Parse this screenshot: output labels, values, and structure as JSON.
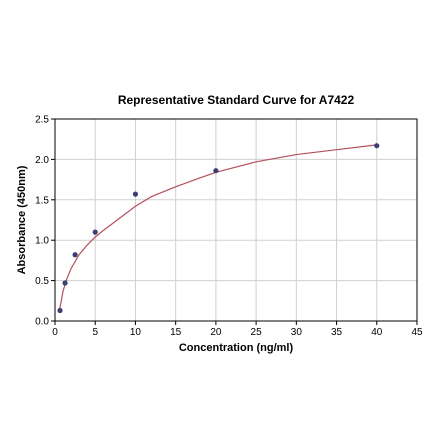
{
  "chart_data": {
    "type": "scatter",
    "title": "Representative Standard Curve for A7422",
    "xlabel": "Concentration (ng/ml)",
    "ylabel": "Absorbance (450nm)",
    "xlim": [
      0,
      45
    ],
    "ylim": [
      0,
      2.5
    ],
    "xticks": [
      0,
      5,
      10,
      15,
      20,
      25,
      30,
      35,
      40,
      45
    ],
    "yticks": [
      0.0,
      0.5,
      1.0,
      1.5,
      2.0,
      2.5
    ],
    "xtick_labels": [
      "0",
      "5",
      "10",
      "15",
      "20",
      "25",
      "30",
      "35",
      "40",
      "45"
    ],
    "ytick_labels": [
      "0.0",
      "0.5",
      "1.0",
      "1.5",
      "2.0",
      "2.5"
    ],
    "grid": true,
    "legend": false,
    "series": [
      {
        "points": [
          {
            "x": 0.625,
            "y": 0.13
          },
          {
            "x": 1.25,
            "y": 0.47
          },
          {
            "x": 2.5,
            "y": 0.82
          },
          {
            "x": 5,
            "y": 1.1
          },
          {
            "x": 10,
            "y": 1.57
          },
          {
            "x": 20,
            "y": 1.86
          },
          {
            "x": 40,
            "y": 2.17
          }
        ],
        "marker_color": "#3b3f72"
      }
    ],
    "fit_curve": {
      "x": [
        0.5,
        1,
        1.5,
        2,
        3,
        4,
        5,
        6,
        8,
        10,
        12,
        15,
        18,
        20,
        25,
        30,
        35,
        40
      ],
      "y": [
        0.1,
        0.37,
        0.53,
        0.65,
        0.82,
        0.94,
        1.04,
        1.12,
        1.27,
        1.42,
        1.54,
        1.66,
        1.77,
        1.84,
        1.97,
        2.06,
        2.12,
        2.18
      ],
      "color": "#b5505d"
    },
    "colors": {
      "grid": "#d0d0d0",
      "axis": "#000000",
      "point": "#3b3f72",
      "curve": "#b5505d"
    }
  }
}
